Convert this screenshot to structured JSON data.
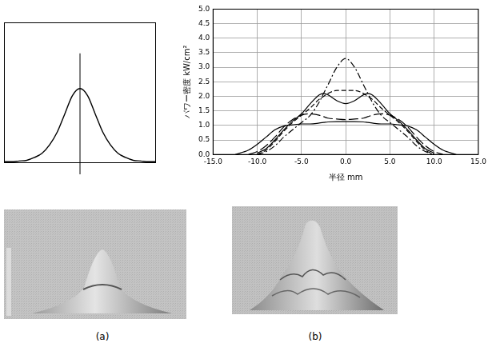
{
  "chart_data": [
    {
      "type": "line",
      "panel_label": "(a)",
      "x": [
        -10,
        -9,
        -8,
        -7,
        -6,
        -5,
        -4,
        -3,
        -2,
        -1,
        0,
        1,
        2,
        3,
        4,
        5,
        6,
        7,
        8,
        9,
        10
      ],
      "values": [
        0.01,
        0.01,
        0.015,
        0.02,
        0.04,
        0.07,
        0.13,
        0.22,
        0.35,
        0.48,
        0.53,
        0.48,
        0.35,
        0.22,
        0.13,
        0.07,
        0.04,
        0.02,
        0.015,
        0.01,
        0.01
      ],
      "color": "#000000",
      "xlim": [
        -10,
        10
      ],
      "ylim": [
        0,
        1
      ],
      "tick_labels": false,
      "grid": false
    },
    {
      "type": "line",
      "panel_label": "(b)",
      "x_label": "半径 mm",
      "y_label": "パワー密度 kW/cm²",
      "x": [
        -12.5,
        -11,
        -10,
        -9,
        -8,
        -7,
        -6,
        -5,
        -4,
        -3,
        -2.5,
        -2,
        -1,
        0,
        1,
        2,
        2.5,
        3,
        4,
        5,
        6,
        7,
        8,
        9,
        10,
        11,
        12.5
      ],
      "series": [
        {
          "color": "#000000",
          "line_style": "dashdot",
          "values": [
            null,
            null,
            0,
            0.1,
            0.3,
            0.6,
            0.85,
            1.1,
            1.35,
            1.8,
            2.1,
            2.4,
            3.0,
            3.3,
            3.0,
            2.4,
            2.1,
            1.8,
            1.35,
            1.1,
            0.85,
            0.6,
            0.3,
            0.1,
            0,
            null,
            null
          ]
        },
        {
          "color": "#000000",
          "line_style": "dashed",
          "values": [
            null,
            null,
            0,
            0.15,
            0.45,
            0.8,
            1.1,
            1.35,
            1.6,
            1.9,
            2.0,
            2.1,
            2.2,
            2.2,
            2.2,
            2.1,
            2.0,
            1.9,
            1.6,
            1.35,
            1.1,
            0.8,
            0.45,
            0.15,
            0,
            null,
            null
          ]
        },
        {
          "color": "#000000",
          "line_style": "solid",
          "values": [
            null,
            null,
            0.05,
            0.2,
            0.5,
            0.85,
            1.15,
            1.4,
            1.75,
            2.05,
            2.1,
            2.05,
            1.85,
            1.75,
            1.85,
            2.05,
            2.1,
            2.05,
            1.75,
            1.4,
            1.15,
            0.85,
            0.5,
            0.2,
            0.05,
            null,
            null
          ]
        },
        {
          "color": "#000000",
          "line_style": "longdash",
          "values": [
            null,
            0,
            0.1,
            0.3,
            0.6,
            0.95,
            1.2,
            1.35,
            1.4,
            1.35,
            1.3,
            1.25,
            1.22,
            1.2,
            1.22,
            1.25,
            1.3,
            1.35,
            1.4,
            1.35,
            1.2,
            0.95,
            0.6,
            0.3,
            0.1,
            0,
            null
          ]
        },
        {
          "color": "#000000",
          "line_style": "solid",
          "values": [
            0,
            0.15,
            0.35,
            0.6,
            0.85,
            0.98,
            1.02,
            1.05,
            1.05,
            1.08,
            1.1,
            1.12,
            1.13,
            1.13,
            1.13,
            1.12,
            1.1,
            1.08,
            1.05,
            1.05,
            1.02,
            0.98,
            0.85,
            0.6,
            0.35,
            0.15,
            0
          ]
        }
      ],
      "xlim": [
        -15,
        15
      ],
      "xticks": [
        {
          "value": -15,
          "label": "-15.0"
        },
        {
          "value": -10,
          "label": "-10.0"
        },
        {
          "value": -5,
          "label": "-5.0"
        },
        {
          "value": 0,
          "label": "0.0"
        },
        {
          "value": 5,
          "label": "5.0"
        },
        {
          "value": 10,
          "label": "10.0"
        },
        {
          "value": 15,
          "label": "15.0"
        }
      ],
      "ylim": [
        0,
        5
      ],
      "yticks": [
        {
          "value": 0,
          "label": "0.0"
        },
        {
          "value": 0.5,
          "label": "0.5"
        },
        {
          "value": 1,
          "label": "1.0"
        },
        {
          "value": 1.5,
          "label": "1.5"
        },
        {
          "value": 2,
          "label": "2.0"
        },
        {
          "value": 2.5,
          "label": "2.5"
        },
        {
          "value": 3,
          "label": "3.0"
        },
        {
          "value": 3.5,
          "label": "3.5"
        },
        {
          "value": 4,
          "label": "4.0"
        },
        {
          "value": 4.5,
          "label": "4.5"
        },
        {
          "value": 5,
          "label": "5.0"
        }
      ],
      "grid": true
    }
  ]
}
